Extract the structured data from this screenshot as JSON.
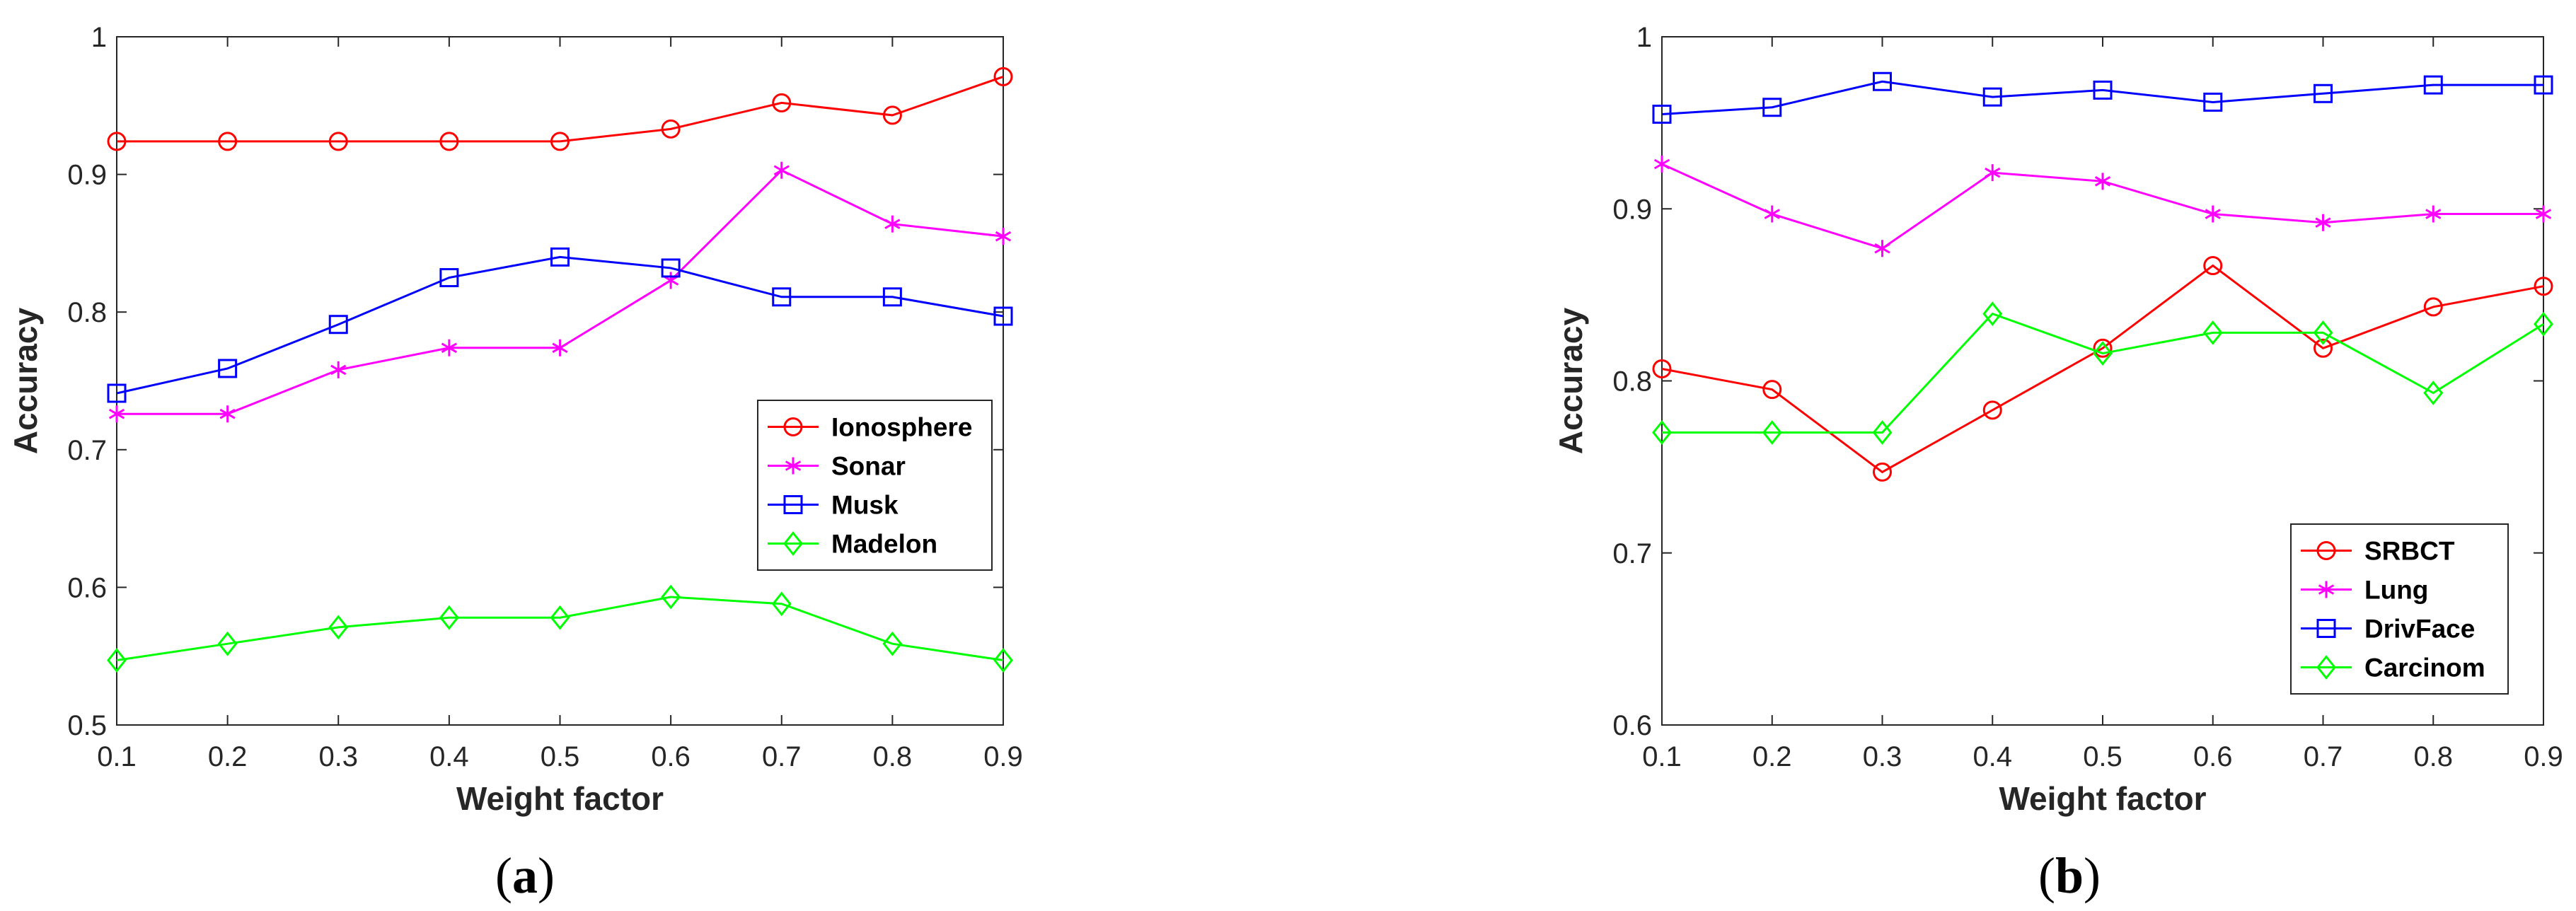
{
  "chart_data": [
    {
      "type": "line",
      "panel": "a",
      "caption": {
        "open": "(",
        "letter": "a",
        "close": ")"
      },
      "xlabel": "Weight factor",
      "ylabel": "Accuracy",
      "x": [
        0.1,
        0.2,
        0.3,
        0.4,
        0.5,
        0.6,
        0.7,
        0.8,
        0.9
      ],
      "xticks": [
        "0.1",
        "0.2",
        "0.3",
        "0.4",
        "0.5",
        "0.6",
        "0.7",
        "0.8",
        "0.9"
      ],
      "xlim": [
        0.1,
        0.9
      ],
      "ylim": [
        0.5,
        1.0
      ],
      "yticks": [
        0.5,
        0.6,
        0.7,
        0.8,
        0.9,
        1.0
      ],
      "ytick_labels": [
        "0.5",
        "0.6",
        "0.7",
        "0.8",
        "0.9",
        "1"
      ],
      "legend_position": "center-right",
      "series": [
        {
          "name": "Ionosphere",
          "color": "#ff0000",
          "marker": "circle",
          "values": [
            0.924,
            0.924,
            0.924,
            0.924,
            0.924,
            0.933,
            0.952,
            0.943,
            0.971
          ]
        },
        {
          "name": "Sonar",
          "color": "#ff00ff",
          "marker": "asterisk",
          "values": [
            0.726,
            0.726,
            0.758,
            0.774,
            0.774,
            0.823,
            0.903,
            0.864,
            0.855
          ]
        },
        {
          "name": "Musk",
          "color": "#0000ff",
          "marker": "square",
          "values": [
            0.741,
            0.759,
            0.791,
            0.825,
            0.84,
            0.832,
            0.811,
            0.811,
            0.797
          ]
        },
        {
          "name": "Madelon",
          "color": "#00ff00",
          "marker": "diamond",
          "values": [
            0.547,
            0.559,
            0.571,
            0.578,
            0.578,
            0.593,
            0.588,
            0.559,
            0.547
          ]
        }
      ]
    },
    {
      "type": "line",
      "panel": "b",
      "caption": {
        "open": "(",
        "letter": "b",
        "close": ")"
      },
      "xlabel": "Weight factor",
      "ylabel": "Accuracy",
      "x": [
        0.1,
        0.2,
        0.3,
        0.4,
        0.5,
        0.6,
        0.7,
        0.8,
        0.9
      ],
      "xticks": [
        "0.1",
        "0.2",
        "0.3",
        "0.4",
        "0.5",
        "0.6",
        "0.7",
        "0.8",
        "0.9"
      ],
      "xlim": [
        0.1,
        0.9
      ],
      "ylim": [
        0.6,
        1.0
      ],
      "yticks": [
        0.6,
        0.7,
        0.8,
        0.9,
        1.0
      ],
      "ytick_labels": [
        "0.6",
        "0.7",
        "0.8",
        "0.9",
        "1"
      ],
      "legend_position": "bottom-right",
      "series": [
        {
          "name": "SRBCT",
          "color": "#ff0000",
          "marker": "circle",
          "values": [
            0.807,
            0.795,
            0.747,
            0.783,
            0.819,
            0.867,
            0.819,
            0.843,
            0.855
          ]
        },
        {
          "name": "Lung",
          "color": "#ff00ff",
          "marker": "asterisk",
          "values": [
            0.926,
            0.897,
            0.877,
            0.921,
            0.916,
            0.897,
            0.892,
            0.897,
            0.897
          ]
        },
        {
          "name": "DrivFace",
          "color": "#0000ff",
          "marker": "square",
          "values": [
            0.955,
            0.959,
            0.974,
            0.965,
            0.969,
            0.962,
            0.967,
            0.972,
            0.972
          ]
        },
        {
          "name": "Carcinom",
          "color": "#00ff00",
          "marker": "diamond",
          "values": [
            0.77,
            0.77,
            0.77,
            0.839,
            0.816,
            0.828,
            0.828,
            0.793,
            0.833
          ]
        }
      ]
    }
  ]
}
